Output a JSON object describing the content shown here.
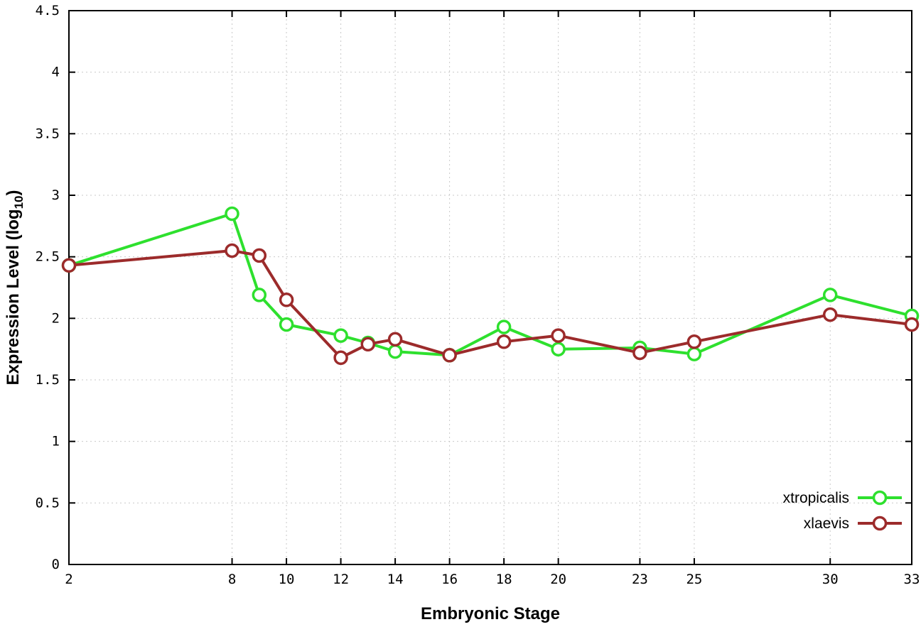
{
  "chart_data": {
    "type": "line",
    "title": "",
    "xlabel": "Embryonic Stage",
    "ylabel": "Expression Level (log10)",
    "ylabel_main": "Expression Level (log",
    "ylabel_sub": "10",
    "ylabel_end": ")",
    "xlim": [
      2,
      33
    ],
    "ylim": [
      0,
      4.5
    ],
    "grid": true,
    "legend_position": "inside-bottom-right",
    "x_ticks": [
      2,
      8,
      10,
      12,
      14,
      16,
      18,
      20,
      23,
      25,
      30,
      33
    ],
    "x_tick_labels": [
      "2",
      "8",
      "10",
      "12",
      "14",
      "16",
      "18",
      "20",
      "23",
      "25",
      "30",
      "33"
    ],
    "y_ticks": [
      0,
      0.5,
      1,
      1.5,
      2,
      2.5,
      3,
      3.5,
      4,
      4.5
    ],
    "y_tick_labels": [
      "0",
      "0.5",
      "1",
      "1.5",
      "2",
      "2.5",
      "3",
      "3.5",
      "4",
      "4.5"
    ],
    "x": [
      2,
      8,
      9,
      10,
      12,
      13,
      14,
      16,
      18,
      20,
      23,
      25,
      30,
      33
    ],
    "marker": "open-circle",
    "colors": {
      "grid": "#c9c9c9",
      "border": "#000000"
    },
    "series": [
      {
        "name": "xtropicalis",
        "color": "#2ee02e",
        "values": [
          2.43,
          2.85,
          2.19,
          1.95,
          1.86,
          1.8,
          1.73,
          1.7,
          1.93,
          1.75,
          1.76,
          1.71,
          2.19,
          2.02
        ]
      },
      {
        "name": "xlaevis",
        "color": "#9c2b2b",
        "values": [
          2.43,
          2.55,
          2.51,
          2.15,
          1.68,
          1.79,
          1.83,
          1.7,
          1.81,
          1.86,
          1.72,
          1.81,
          2.03,
          1.95
        ]
      }
    ]
  }
}
